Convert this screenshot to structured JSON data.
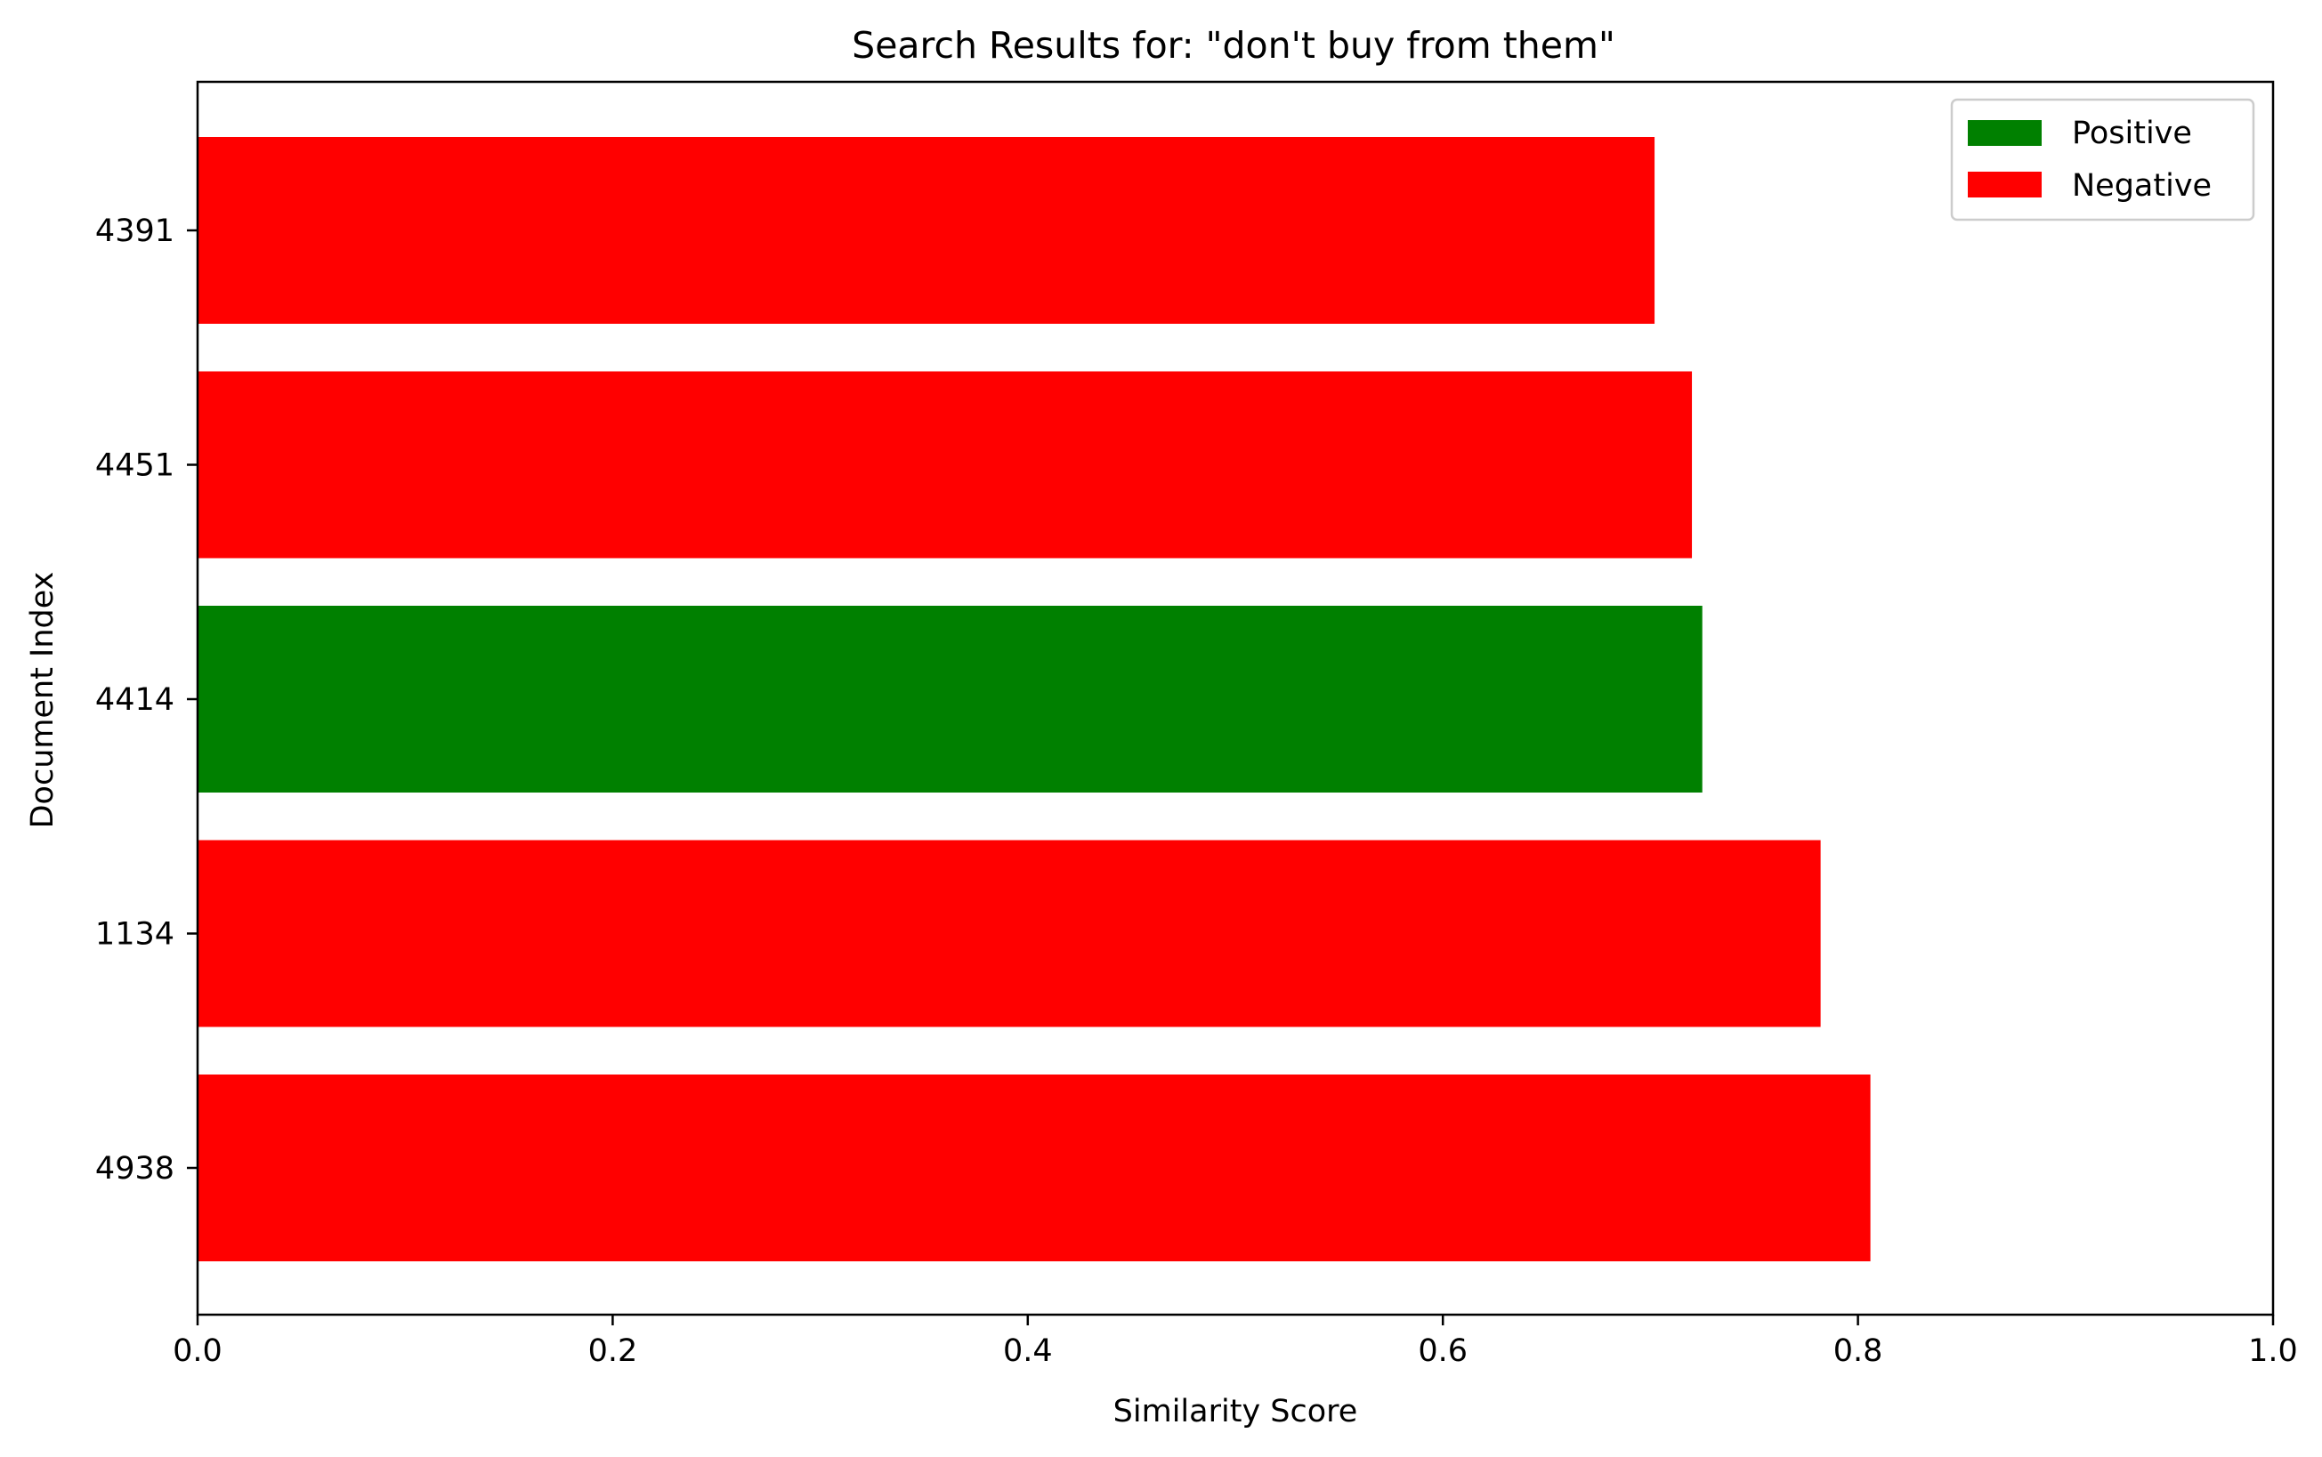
{
  "chart_data": {
    "type": "bar",
    "orientation": "horizontal",
    "title": "Search Results for: \"don't buy from them\"",
    "xlabel": "Similarity Score",
    "ylabel": "Document Index",
    "xlim": [
      0,
      1.0
    ],
    "x_ticks": [
      "0.0",
      "0.2",
      "0.4",
      "0.6",
      "0.8",
      "1.0"
    ],
    "x_tick_values": [
      0.0,
      0.2,
      0.4,
      0.6,
      0.8,
      1.0
    ],
    "grid": false,
    "legend_position": "top-right",
    "legend": [
      {
        "label": "Positive",
        "color": "#008000"
      },
      {
        "label": "Negative",
        "color": "#ff0000"
      }
    ],
    "categories": [
      "4938",
      "1134",
      "4414",
      "4451",
      "4391"
    ],
    "values": [
      0.806,
      0.782,
      0.725,
      0.72,
      0.702
    ],
    "sentiment": [
      "Negative",
      "Negative",
      "Positive",
      "Negative",
      "Negative"
    ],
    "colors": [
      "#ff0000",
      "#ff0000",
      "#008000",
      "#ff0000",
      "#ff0000"
    ]
  }
}
